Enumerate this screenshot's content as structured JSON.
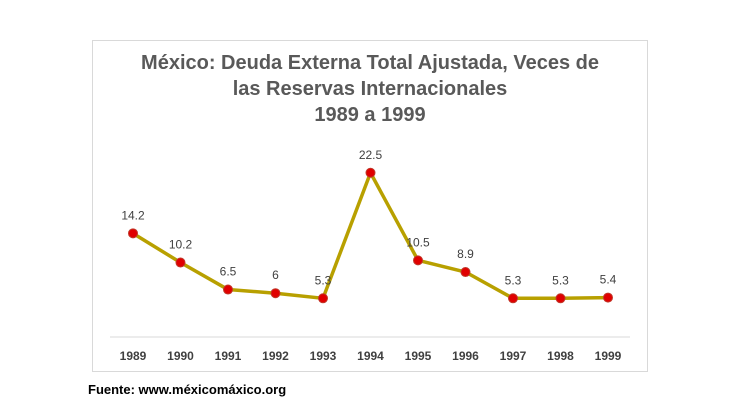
{
  "chart_data": {
    "type": "line",
    "title_lines": [
      "México: Deuda Externa Total Ajustada, Veces de",
      "las Reservas Internacionales",
      "1989 a 1999"
    ],
    "categories": [
      "1989",
      "1990",
      "1991",
      "1992",
      "1993",
      "1994",
      "1995",
      "1996",
      "1997",
      "1998",
      "1999"
    ],
    "series": [
      {
        "values": [
          14.2,
          10.2,
          6.5,
          6,
          5.3,
          22.5,
          10.5,
          8.9,
          5.3,
          5.3,
          5.4
        ]
      }
    ],
    "data_labels": [
      "14.2",
      "10.2",
      "6.5",
      "6",
      "5.3",
      "22.5",
      "10.5",
      "8.9",
      "5.3",
      "5.3",
      "5.4"
    ],
    "ylim": [
      0,
      25
    ],
    "grid": false,
    "colors": {
      "line": "#b8a000",
      "marker": "#e00000",
      "marker_edge": "#c0392b"
    }
  },
  "footer": {
    "source": "Fuente: www.méxicomáxico.org"
  }
}
